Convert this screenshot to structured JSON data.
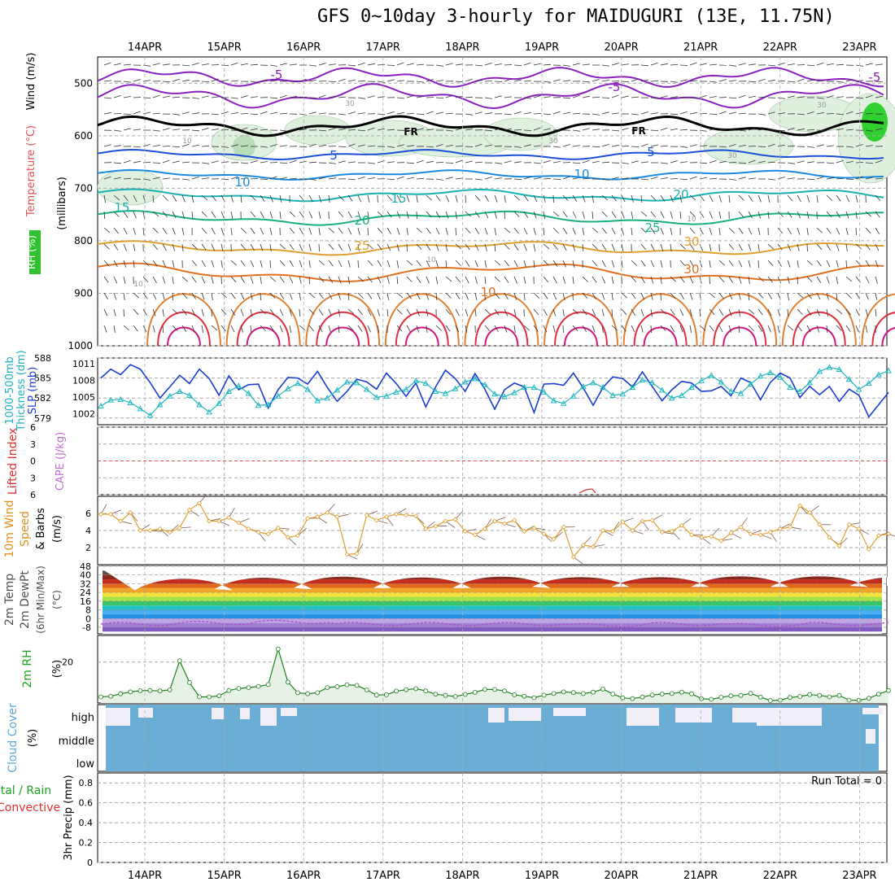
{
  "title": "GFS 0~10day 3-hourly for MAIDUGURI (13E, 11.75N)",
  "colors": {
    "wind_label": "#000000",
    "temp_label": "#e05050",
    "thickness_label": "#20b0c0",
    "slp_label": "#2040d0",
    "li_label": "#e03030",
    "cape_label": "#c070d0",
    "wind10_label": "#e09020",
    "temp2m_label": "#505050",
    "rh2m_label": "#20a020",
    "cloud_label": "#60a8d8",
    "precip_total_label": "#20a020",
    "precip_conv_label": "#e03030",
    "slp_line": "#1a3cd0",
    "thickness_line": "#20b8c0",
    "rh_line": "#208020",
    "rh_fill": "#e6f2e6",
    "wind_line": "#e0a030",
    "cloud_fill": "#6aaed6",
    "cloud_gap": "#f2eef8"
  },
  "chart_data": {
    "days": [
      "14APR",
      "15APR",
      "16APR",
      "17APR",
      "18APR",
      "19APR",
      "20APR",
      "21APR",
      "22APR",
      "23APR"
    ],
    "panels": [
      {
        "id": "upper-air",
        "type": "contour",
        "ylabel": "(millibars)",
        "labels": [
          "Wind (m/s)",
          "Temperature (°C)",
          "RH (%)"
        ],
        "ylim": [
          1000,
          450
        ],
        "yticks": [
          "500",
          "600",
          "700",
          "800",
          "900",
          "1000"
        ],
        "contour_labels": [
          "-5",
          "-5",
          "-5",
          "FR",
          "FR",
          "5",
          "5",
          "10",
          "10",
          "15",
          "15",
          "20",
          "20",
          "25",
          "25",
          "30",
          "30",
          "10",
          "30",
          "30",
          "30",
          "10",
          "10",
          "10",
          "10",
          "30"
        ]
      },
      {
        "id": "slp-thickness",
        "type": "line",
        "labels": [
          "1000-500mb",
          "Thickness (dm)",
          "SLP (mb)"
        ],
        "left_ticks": [
          "588",
          "585",
          "582",
          "579"
        ],
        "right_ticks": [
          "1011",
          "1008",
          "1005",
          "1002"
        ],
        "slp_ylim": [
          1000,
          1012
        ],
        "thickness_ylim": [
          578,
          588
        ],
        "series": [
          {
            "name": "SLP (mb)",
            "values": [
              1008.4,
              1010.0,
              1009.0,
              1010.8,
              1010.0,
              1007.6,
              1004.8,
              1006.8,
              1008.9,
              1007.4,
              1010.0,
              1008.3,
              1005.3,
              1008.8,
              1006.3,
              1007.2,
              1007.3,
              1003.0,
              1006.3,
              1008.5,
              1008.4,
              1007.3,
              1009.6,
              1006.7,
              1004.2,
              1006.0,
              1008.2,
              1007.7,
              1006.4,
              1009.3,
              1007.4,
              1005.1,
              1007.5,
              1003.2,
              1006.8,
              1009.8,
              1008.3,
              1006.0,
              1009.2,
              1006.4,
              1002.8,
              1006.3,
              1007.5,
              1006.8,
              1002.2,
              1007.3,
              1007.4,
              1007.1,
              1009.3,
              1006.6,
              1003.5,
              1006.7,
              1008.6,
              1008.3,
              1006.8,
              1009.5,
              1006.9,
              1004.3,
              1006.3,
              1007.8,
              1007.5,
              1006.0,
              1006.1,
              1006.9,
              1005.2,
              1008.4,
              1007.6,
              1004.5,
              1007.6,
              1009.3,
              1008.4,
              1004.9,
              1006.9,
              1005.4,
              1006.9,
              1004.2,
              1006.4,
              1005.3,
              1001.4,
              1003.6,
              1005.8
            ]
          },
          {
            "name": "1000-500mb Thickness (dm)",
            "values": [
              580.8,
              581.7,
              581.8,
              581.3,
              580.4,
              579.4,
              581.0,
              582.3,
              583.0,
              582.4,
              581.0,
              579.9,
              581.2,
              583.0,
              583.8,
              582.7,
              580.9,
              581.0,
              582.3,
              583.4,
              584.2,
              583.3,
              581.6,
              582.0,
              583.2,
              584.4,
              584.3,
              583.3,
              582.1,
              582.3,
              582.9,
              583.3,
              584.6,
              584.2,
              583.0,
              582.7,
              583.4,
              584.4,
              584.9,
              584.0,
              582.6,
              582.2,
              582.8,
              583.6,
              583.6,
              582.9,
              581.6,
              581.2,
              582.3,
              583.7,
              584.3,
              583.6,
              582.4,
              582.6,
              583.6,
              584.7,
              584.3,
              583.2,
              582.0,
              582.4,
              583.6,
              584.6,
              585.4,
              584.4,
              583.0,
              582.7,
              584.1,
              585.3,
              585.8,
              585.1,
              583.6,
              583.0,
              584.3,
              586.0,
              586.6,
              586.3,
              584.8,
              583.3,
              584.2,
              585.5,
              586.1
            ]
          }
        ]
      },
      {
        "id": "li-cape",
        "type": "line",
        "labels": [
          "Lifted Index",
          "CAPE (J/kg)"
        ],
        "ticks": [
          "-6",
          "-3",
          "0",
          "3",
          "6"
        ],
        "ylim": [
          6,
          -6
        ],
        "series": [
          {
            "name": "Lifted Index",
            "values": []
          },
          {
            "name": "CAPE (J/kg)",
            "values": []
          }
        ]
      },
      {
        "id": "wind10m",
        "type": "line",
        "labels": [
          "10m Wind",
          "Speed",
          "& Barbs",
          "(m/s)"
        ],
        "ticks": [
          "6",
          "4",
          "2"
        ],
        "ylim": [
          0,
          8
        ],
        "series": [
          {
            "name": "10m Wind Speed (m/s)",
            "values": [
              5.9,
              5.9,
              5.1,
              6.1,
              4.0,
              4.0,
              4.2,
              3.8,
              4.3,
              6.4,
              7.2,
              5.1,
              5.1,
              5.5,
              4.9,
              4.2,
              3.8,
              3.6,
              4.3,
              3.2,
              3.4,
              5.4,
              5.6,
              6.1,
              5.6,
              1.2,
              1.3,
              5.8,
              5.2,
              5.6,
              5.9,
              5.8,
              5.7,
              4.2,
              4.5,
              5.1,
              5.3,
              3.9,
              3.5,
              4.2,
              5.1,
              4.8,
              5.2,
              3.9,
              4.3,
              3.6,
              3.0,
              4.4,
              0.9,
              2.3,
              2.1,
              4.0,
              3.9,
              5.0,
              4.0,
              5.1,
              5.2,
              3.8,
              3.9,
              4.6,
              3.5,
              3.2,
              3.3,
              2.8,
              3.7,
              4.4,
              3.6,
              3.5,
              3.8,
              4.2,
              4.4,
              6.9,
              6.1,
              4.7,
              3.2,
              2.2,
              4.7,
              4.2,
              1.8,
              3.4,
              3.6
            ]
          }
        ]
      },
      {
        "id": "temp2m",
        "type": "area",
        "labels": [
          "2m Temp",
          "2m DewPt",
          "(6hr Min/Max)",
          "(°C)"
        ],
        "ticks": [
          "48",
          "40",
          "32",
          "24",
          "16",
          "8",
          "0",
          "-8"
        ],
        "ylim": [
          -14,
          48
        ],
        "series": [
          {
            "name": "2m Temp (°C)",
            "max_values": [
              38,
              39,
              40,
              39,
              40,
              39,
              39,
              40,
              40,
              39
            ],
            "min_values": [
              26,
              27,
              28,
              28,
              28,
              29,
              29,
              29,
              29,
              30
            ]
          },
          {
            "name": "2m DewPt (°C)",
            "values": [
              -5,
              -4,
              -3,
              -5,
              -5,
              -5,
              -6,
              -5,
              -6,
              -5
            ]
          }
        ]
      },
      {
        "id": "rh2m",
        "type": "area",
        "labels": [
          "2m RH",
          "(%)"
        ],
        "ticks": [
          "20"
        ],
        "ylim": [
          0,
          33
        ],
        "series": [
          {
            "name": "2m RH (%)",
            "values": [
              3.0,
              3.3,
              4.5,
              5.4,
              6.0,
              6.1,
              5.9,
              6.4,
              20.6,
              10.0,
              3.0,
              3.0,
              3.5,
              6.1,
              7.1,
              7.5,
              8.1,
              9.0,
              26.4,
              10.2,
              5.0,
              4.5,
              5.0,
              7.5,
              8.0,
              8.9,
              8.6,
              6.4,
              3.9,
              4.0,
              5.8,
              6.5,
              7.0,
              5.9,
              4.3,
              3.7,
              3.2,
              4.2,
              5.2,
              6.6,
              6.6,
              5.9,
              4.0,
              3.3,
              2.6,
              3.8,
              4.6,
              5.4,
              5.1,
              4.6,
              5.3,
              6.8,
              4.4,
              2.5,
              2.1,
              2.9,
              3.9,
              4.4,
              4.6,
              5.3,
              4.5,
              2.1,
              1.8,
              2.8,
              3.5,
              3.7,
              4.7,
              2.9,
              1.2,
              1.4,
              2.7,
              3.2,
              4.1,
              3.7,
              3.0,
              3.7,
              1.4,
              1.3,
              2.3,
              4.3,
              6.1
            ]
          }
        ]
      },
      {
        "id": "cloud",
        "type": "heatmap",
        "labels": [
          "Cloud Cover",
          "(%)"
        ],
        "rows": [
          "high",
          "middle",
          "low"
        ]
      },
      {
        "id": "precip",
        "type": "bar",
        "labels": [
          "Total / Rain",
          "Convective",
          "3hr Precip (mm)"
        ],
        "ticks": [
          "0.8",
          "0.6",
          "0.4",
          "0.2",
          "0"
        ],
        "ylim": [
          0,
          0.9
        ],
        "annotation": "Run Total = 0",
        "series": [
          {
            "name": "Total / Rain",
            "values": []
          },
          {
            "name": "Convective",
            "values": []
          }
        ]
      }
    ]
  }
}
